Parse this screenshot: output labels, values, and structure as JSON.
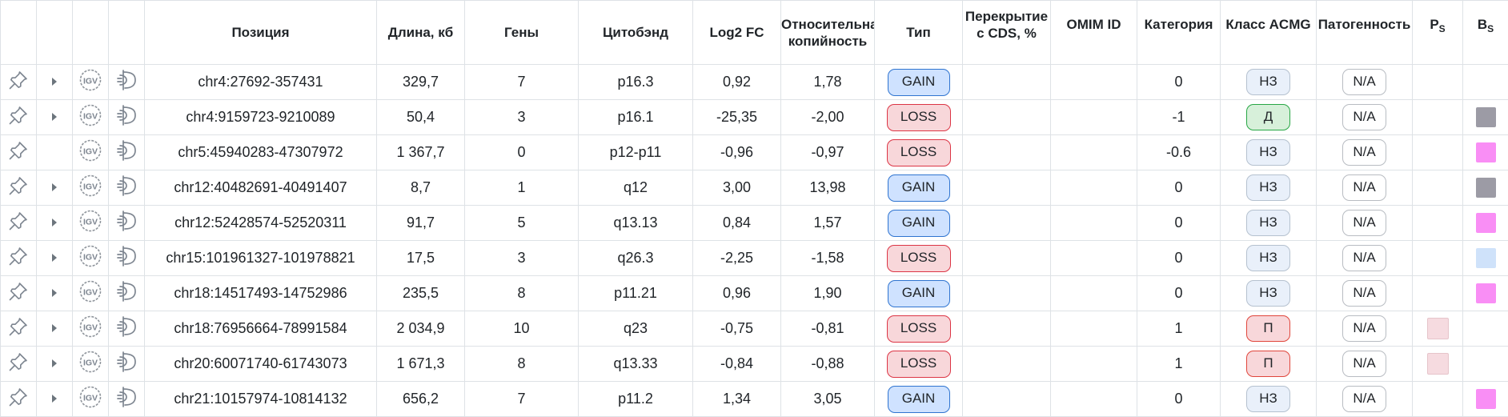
{
  "header": {
    "position": "Позиция",
    "length": "Длина, кб",
    "genes": "Гены",
    "cytoband": "Цитобэнд",
    "log2fc": "Log2 FC",
    "rel_copy_1": "Относительная",
    "rel_copy_2": "копийность",
    "type": "Тип",
    "cds_1": "Перекрытие",
    "cds_2": "с CDS, %",
    "omim": "OMIM ID",
    "category": "Категория",
    "acmg": "Класс ACMG",
    "pathogenicity": "Патогенность",
    "ps_letter": "P",
    "ps_sub": "S",
    "bs_letter": "B",
    "bs_sub": "S"
  },
  "icons": {
    "igv_text": "IGV"
  },
  "rows": [
    {
      "position": "chr4:27692-357431",
      "length": "329,7",
      "genes": "7",
      "cytoband": "p16.3",
      "log2fc": "0,92",
      "relcopy": "1,78",
      "type": "GAIN",
      "cds": "",
      "omim": "",
      "category": "0",
      "acmg": "НЗ",
      "acmg_kind": "nz",
      "path": "N/A",
      "has_expand": true,
      "ps_color": "",
      "bs_color": ""
    },
    {
      "position": "chr4:9159723-9210089",
      "length": "50,4",
      "genes": "3",
      "cytoband": "p16.1",
      "log2fc": "-25,35",
      "relcopy": "-2,00",
      "type": "LOSS",
      "cds": "",
      "omim": "",
      "category": "-1",
      "acmg": "Д",
      "acmg_kind": "d",
      "path": "N/A",
      "has_expand": true,
      "ps_color": "",
      "bs_color": "#9c9ba5"
    },
    {
      "position": "chr5:45940283-47307972",
      "length": "1 367,7",
      "genes": "0",
      "cytoband": "p12-p11",
      "log2fc": "-0,96",
      "relcopy": "-0,97",
      "type": "LOSS",
      "cds": "",
      "omim": "",
      "category": "-0.6",
      "acmg": "НЗ",
      "acmg_kind": "nz",
      "path": "N/A",
      "has_expand": false,
      "ps_color": "",
      "bs_color": "#f98ef5"
    },
    {
      "position": "chr12:40482691-40491407",
      "length": "8,7",
      "genes": "1",
      "cytoband": "q12",
      "log2fc": "3,00",
      "relcopy": "13,98",
      "type": "GAIN",
      "cds": "",
      "omim": "",
      "category": "0",
      "acmg": "НЗ",
      "acmg_kind": "nz",
      "path": "N/A",
      "has_expand": true,
      "ps_color": "",
      "bs_color": "#9c9ba5"
    },
    {
      "position": "chr12:52428574-52520311",
      "length": "91,7",
      "genes": "5",
      "cytoband": "q13.13",
      "log2fc": "0,84",
      "relcopy": "1,57",
      "type": "GAIN",
      "cds": "",
      "omim": "",
      "category": "0",
      "acmg": "НЗ",
      "acmg_kind": "nz",
      "path": "N/A",
      "has_expand": true,
      "ps_color": "",
      "bs_color": "#f98ef5"
    },
    {
      "position": "chr15:101961327-101978821",
      "length": "17,5",
      "genes": "3",
      "cytoband": "q26.3",
      "log2fc": "-2,25",
      "relcopy": "-1,58",
      "type": "LOSS",
      "cds": "",
      "omim": "",
      "category": "0",
      "acmg": "НЗ",
      "acmg_kind": "nz",
      "path": "N/A",
      "has_expand": true,
      "ps_color": "",
      "bs_color": "#cfe2fa"
    },
    {
      "position": "chr18:14517493-14752986",
      "length": "235,5",
      "genes": "8",
      "cytoband": "p11.21",
      "log2fc": "0,96",
      "relcopy": "1,90",
      "type": "GAIN",
      "cds": "",
      "omim": "",
      "category": "0",
      "acmg": "НЗ",
      "acmg_kind": "nz",
      "path": "N/A",
      "has_expand": true,
      "ps_color": "",
      "bs_color": "#f98ef5"
    },
    {
      "position": "chr18:76956664-78991584",
      "length": "2 034,9",
      "genes": "10",
      "cytoband": "q23",
      "log2fc": "-0,75",
      "relcopy": "-0,81",
      "type": "LOSS",
      "cds": "",
      "omim": "",
      "category": "1",
      "acmg": "П",
      "acmg_kind": "p",
      "path": "N/A",
      "has_expand": true,
      "ps_color": "#f6dbe0",
      "bs_color": ""
    },
    {
      "position": "chr20:60071740-61743073",
      "length": "1 671,3",
      "genes": "8",
      "cytoband": "q13.33",
      "log2fc": "-0,84",
      "relcopy": "-0,88",
      "type": "LOSS",
      "cds": "",
      "omim": "",
      "category": "1",
      "acmg": "П",
      "acmg_kind": "p",
      "path": "N/A",
      "has_expand": true,
      "ps_color": "#f6dbe0",
      "bs_color": ""
    },
    {
      "position": "chr21:10157974-10814132",
      "length": "656,2",
      "genes": "7",
      "cytoband": "p11.2",
      "log2fc": "1,34",
      "relcopy": "3,05",
      "type": "GAIN",
      "cds": "",
      "omim": "",
      "category": "0",
      "acmg": "НЗ",
      "acmg_kind": "nz",
      "path": "N/A",
      "has_expand": true,
      "ps_color": "",
      "bs_color": "#f98ef5"
    }
  ]
}
